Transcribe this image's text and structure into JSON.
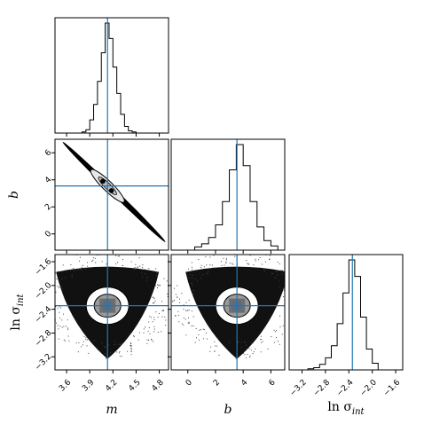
{
  "chart_data": {
    "type": "corner",
    "parameters": [
      {
        "key": "m",
        "label_main": "m",
        "label_sub": "",
        "truth": 4.13,
        "range": [
          3.45,
          4.92
        ],
        "ticks": [
          "3.6",
          "3.9",
          "4.2",
          "4.5",
          "4.8"
        ],
        "tick_values": [
          3.6,
          3.9,
          4.2,
          4.5,
          4.8
        ]
      },
      {
        "key": "b",
        "label_main": "b",
        "label_sub": "",
        "truth": 3.55,
        "range": [
          -1.2,
          7.0
        ],
        "ticks": [
          "0",
          "2",
          "4",
          "6"
        ],
        "tick_values": [
          0,
          2,
          4,
          6
        ]
      },
      {
        "key": "ln_sigma_int",
        "label_main": "ln σ",
        "label_sub": "int",
        "truth": -2.34,
        "range": [
          -3.42,
          -1.48
        ],
        "ticks": [
          "−3.2",
          "−2.8",
          "−2.4",
          "−2.0",
          "−1.6"
        ],
        "tick_values": [
          -3.2,
          -2.8,
          -2.4,
          -2.0,
          -1.6
        ]
      }
    ],
    "histograms": {
      "m": {
        "bin_edges": [
          3.8,
          3.85,
          3.9,
          3.95,
          4.0,
          4.05,
          4.1,
          4.15,
          4.2,
          4.25,
          4.3,
          4.35,
          4.4,
          4.45,
          4.5
        ],
        "counts": [
          0.01,
          0.03,
          0.12,
          0.26,
          0.47,
          0.73,
          1.0,
          0.86,
          0.6,
          0.36,
          0.17,
          0.06,
          0.02,
          0.01
        ]
      },
      "b": {
        "bin_edges": [
          0.5,
          1.0,
          1.5,
          2.0,
          2.5,
          3.0,
          3.5,
          4.0,
          4.5,
          5.0,
          5.5,
          6.0,
          6.5
        ],
        "counts": [
          0.03,
          0.06,
          0.12,
          0.24,
          0.46,
          0.76,
          1.0,
          0.8,
          0.46,
          0.22,
          0.09,
          0.04
        ]
      },
      "ln_sigma_int": {
        "bin_edges": [
          -3.1,
          -3.0,
          -2.9,
          -2.8,
          -2.7,
          -2.6,
          -2.5,
          -2.4,
          -2.3,
          -2.2,
          -2.1,
          -2.0,
          -1.9
        ],
        "counts": [
          0.01,
          0.02,
          0.05,
          0.11,
          0.22,
          0.42,
          0.7,
          1.0,
          0.85,
          0.48,
          0.19,
          0.06
        ]
      }
    },
    "pairs": [
      {
        "x": "m",
        "y": "b",
        "center": [
          4.13,
          3.55
        ],
        "kind": "anticorrelated",
        "line_start": [
          3.55,
          6.8
        ],
        "line_end": [
          4.88,
          -0.6
        ],
        "ellipse_halfwidth": [
          0.22,
          0.02
        ],
        "markers": [
          [
            4.07,
            3.9
          ],
          [
            4.18,
            3.2
          ]
        ]
      },
      {
        "x": "m",
        "y": "ln_sigma_int",
        "center": [
          4.13,
          -2.34
        ],
        "kind": "triangular"
      },
      {
        "x": "b",
        "y": "ln_sigma_int",
        "center": [
          3.55,
          -2.34
        ],
        "kind": "triangular"
      }
    ],
    "truth_color": "#1f77b4",
    "density_color": "#000000"
  }
}
